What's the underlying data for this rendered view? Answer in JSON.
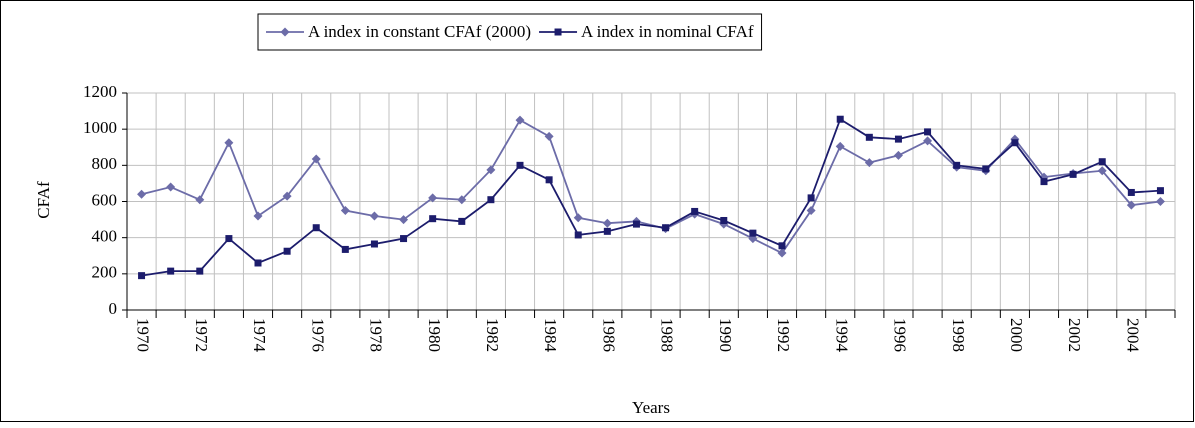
{
  "chart_data": {
    "type": "line",
    "categories": [
      "1970",
      null,
      "1972",
      null,
      "1974",
      null,
      "1976",
      null,
      "1978",
      null,
      "1980",
      null,
      "1982",
      null,
      "1984",
      null,
      "1986",
      null,
      "1988",
      null,
      "1990",
      null,
      "1992",
      null,
      "1994",
      null,
      "1996",
      null,
      "1998",
      null,
      "2000",
      null,
      "2002",
      null,
      "2004",
      null
    ],
    "series": [
      {
        "name": "A index in constant CFAf (2000)",
        "color": "#6c6ca8",
        "marker": "diamond",
        "values": [
          640,
          680,
          610,
          925,
          520,
          630,
          835,
          550,
          520,
          500,
          620,
          610,
          775,
          1050,
          960,
          510,
          480,
          490,
          450,
          530,
          475,
          395,
          315,
          550,
          905,
          815,
          855,
          935,
          790,
          770,
          945,
          735,
          755,
          770,
          580,
          600
        ]
      },
      {
        "name": "A index in nominal CFAf",
        "color": "#1c1c6c",
        "marker": "square",
        "values": [
          190,
          215,
          215,
          395,
          260,
          325,
          455,
          335,
          365,
          395,
          505,
          490,
          610,
          800,
          720,
          415,
          435,
          475,
          455,
          545,
          495,
          425,
          355,
          620,
          1055,
          955,
          945,
          985,
          800,
          780,
          925,
          710,
          750,
          820,
          650,
          660
        ]
      }
    ],
    "xlabel": "Years",
    "ylabel": "CFAf",
    "ylim": [
      0,
      1200
    ],
    "yticks": [
      0,
      200,
      400,
      600,
      800,
      1000,
      1200
    ],
    "grid": true,
    "legend": "top"
  }
}
